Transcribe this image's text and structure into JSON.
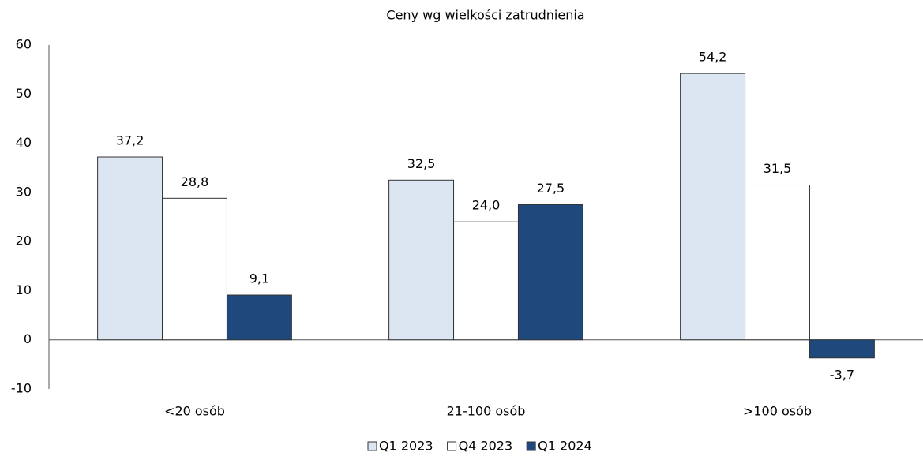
{
  "chart_data": {
    "type": "bar",
    "title": "Ceny wg wielkości zatrudnienia",
    "categories": [
      "<20 osób",
      "21-100 osób",
      ">100 osób"
    ],
    "series": [
      {
        "name": "Q1 2023",
        "color": "#dce6f2",
        "values": [
          37.2,
          32.5,
          54.2
        ],
        "value_labels": [
          "37,2",
          "32,5",
          "54,2"
        ]
      },
      {
        "name": "Q4 2023",
        "color": "#ffffff",
        "values": [
          28.8,
          24.0,
          31.5
        ],
        "value_labels": [
          "28,8",
          "24,0",
          "31,5"
        ]
      },
      {
        "name": "Q1 2024",
        "color": "#1f497d",
        "values": [
          9.1,
          27.5,
          -3.7
        ],
        "value_labels": [
          "9,1",
          "27,5",
          "-3,7"
        ]
      }
    ],
    "ylim": [
      -10,
      60
    ],
    "yticks": [
      -10,
      0,
      10,
      20,
      30,
      40,
      50,
      60
    ],
    "grid": false
  }
}
